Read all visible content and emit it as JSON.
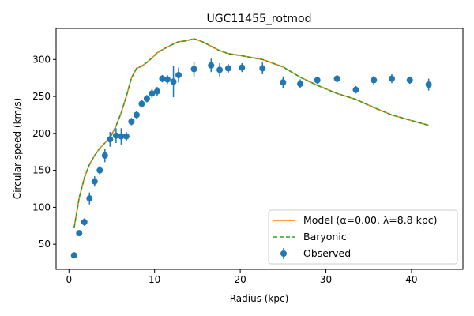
{
  "chart_data": {
    "type": "line",
    "title": "UGC11455_rotmod",
    "xlabel": "Radius (kpc)",
    "ylabel": "Circular speed (km/s)",
    "xlim": [
      -1.5,
      46.0
    ],
    "ylim": [
      16,
      342
    ],
    "xticks": [
      0,
      10,
      20,
      30,
      40
    ],
    "yticks": [
      50,
      100,
      150,
      200,
      250,
      300
    ],
    "grid": false,
    "legend_position": "lower-right",
    "series": [
      {
        "name": "Model (α=0.00, λ=8.8 kpc)",
        "kind": "line",
        "color": "#ff7f0e",
        "x": [
          0.6,
          1.2,
          1.8,
          2.4,
          3.0,
          3.6,
          4.2,
          4.8,
          5.5,
          6.1,
          6.7,
          7.3,
          7.9,
          8.5,
          9.1,
          9.7,
          10.3,
          10.9,
          11.5,
          12.2,
          12.8,
          13.5,
          14.6,
          15.6,
          16.6,
          17.6,
          18.6,
          20.2,
          22.6,
          25.0,
          27.0,
          29.0,
          31.3,
          33.5,
          35.6,
          37.7,
          39.8,
          42.0
        ],
        "y": [
          72,
          113,
          140,
          158,
          170,
          180,
          187,
          194,
          210,
          228,
          250,
          275,
          288,
          291,
          296,
          302,
          309,
          313,
          317,
          321,
          324,
          325,
          328,
          324,
          318,
          312,
          308,
          305,
          300,
          290,
          276,
          265,
          254,
          246,
          235,
          225,
          218,
          211
        ]
      },
      {
        "name": "Baryonic",
        "kind": "dashed-line",
        "color": "#2ca02c",
        "x": [
          0.6,
          1.2,
          1.8,
          2.4,
          3.0,
          3.6,
          4.2,
          4.8,
          5.5,
          6.1,
          6.7,
          7.3,
          7.9,
          8.5,
          9.1,
          9.7,
          10.3,
          10.9,
          11.5,
          12.2,
          12.8,
          13.5,
          14.6,
          15.6,
          16.6,
          17.6,
          18.6,
          20.2,
          22.6,
          25.0,
          27.0,
          29.0,
          31.3,
          33.5,
          35.6,
          37.7,
          39.8,
          42.0
        ],
        "y": [
          72,
          113,
          140,
          158,
          170,
          180,
          187,
          194,
          210,
          228,
          250,
          275,
          288,
          291,
          296,
          302,
          309,
          313,
          317,
          321,
          324,
          325,
          328,
          324,
          318,
          312,
          308,
          305,
          300,
          290,
          276,
          265,
          254,
          246,
          235,
          225,
          218,
          211
        ]
      },
      {
        "name": "Observed",
        "kind": "errorbar",
        "color": "#1f77b4",
        "x": [
          0.6,
          1.2,
          1.8,
          2.4,
          3.0,
          3.6,
          4.2,
          4.8,
          5.5,
          6.1,
          6.7,
          7.3,
          7.9,
          8.5,
          9.1,
          9.7,
          10.3,
          10.9,
          11.5,
          12.2,
          12.8,
          14.6,
          16.6,
          17.6,
          18.6,
          20.2,
          22.6,
          25.0,
          27.0,
          29.0,
          31.3,
          33.5,
          35.6,
          37.7,
          39.8,
          42.0
        ],
        "y": [
          35,
          65,
          80,
          112,
          135,
          150,
          170,
          192,
          197,
          196,
          196,
          216,
          225,
          240,
          247,
          254,
          257,
          274,
          273,
          270,
          279,
          287,
          292,
          286,
          288,
          289,
          288,
          269,
          267,
          272,
          274,
          259,
          272,
          274,
          272,
          266
        ],
        "yerr": [
          3,
          4,
          5,
          8,
          7,
          6,
          9,
          10,
          10,
          11,
          6,
          5,
          5,
          5,
          5,
          6,
          6,
          5,
          6,
          21,
          10,
          10,
          9,
          9,
          6,
          6,
          8,
          8,
          6,
          5,
          5,
          5,
          6,
          6,
          5,
          8
        ]
      }
    ]
  }
}
